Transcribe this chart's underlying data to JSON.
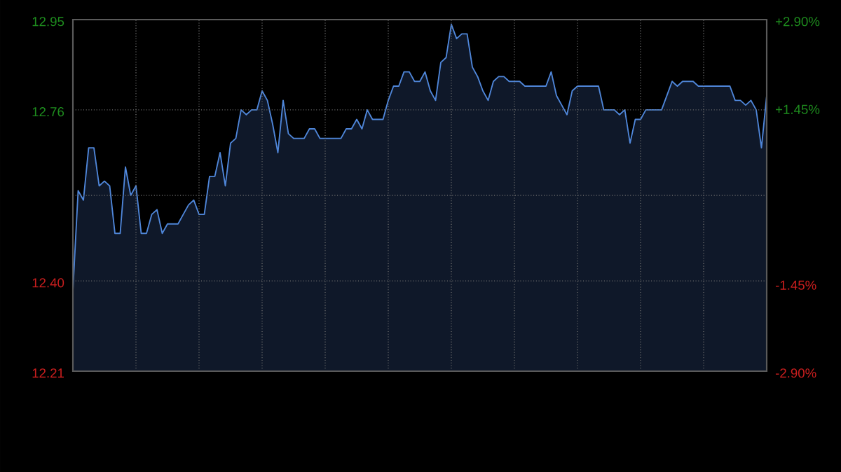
{
  "chart_data": {
    "type": "area",
    "categories": [
      null,
      null,
      null,
      null,
      null,
      null,
      null,
      null,
      null,
      null,
      null,
      null,
      null,
      null,
      null,
      null,
      null,
      null,
      null,
      null,
      null,
      null,
      null,
      null,
      null,
      null,
      null,
      null,
      null,
      null,
      null,
      null,
      null,
      null,
      null,
      null,
      null,
      null,
      null,
      null,
      null,
      null,
      null,
      null,
      null,
      null,
      null,
      null,
      null,
      null,
      null,
      null,
      null,
      null,
      null,
      null,
      null,
      null,
      null,
      null,
      null,
      null,
      null,
      null,
      null,
      null,
      null,
      null,
      null,
      null,
      null,
      null,
      null,
      null,
      null,
      null,
      null,
      null,
      null,
      null,
      null,
      null,
      null,
      null,
      null,
      null,
      null,
      null,
      null,
      null,
      null,
      null,
      null,
      null,
      null,
      null,
      null,
      null,
      null,
      null,
      null,
      null,
      null,
      null,
      null,
      null,
      null,
      null,
      null,
      null,
      null,
      null,
      null,
      null,
      null,
      null,
      null,
      null,
      null,
      null,
      null,
      null,
      null,
      null,
      null,
      null,
      null,
      null,
      null,
      null,
      null,
      null,
      null
    ],
    "series": [
      {
        "color": "#4f86d9",
        "values": [
          12.38,
          12.59,
          12.57,
          12.68,
          12.68,
          12.6,
          12.61,
          12.6,
          12.5,
          12.5,
          12.64,
          12.58,
          12.6,
          12.5,
          12.5,
          12.54,
          12.55,
          12.5,
          12.52,
          12.52,
          12.52,
          12.54,
          12.56,
          12.57,
          12.54,
          12.54,
          12.62,
          12.62,
          12.67,
          12.6,
          12.69,
          12.7,
          12.76,
          12.75,
          12.76,
          12.76,
          12.8,
          12.78,
          12.73,
          12.67,
          12.78,
          12.71,
          12.7,
          12.7,
          12.7,
          12.72,
          12.72,
          12.7,
          12.7,
          12.7,
          12.7,
          12.7,
          12.72,
          12.72,
          12.74,
          12.72,
          12.76,
          12.74,
          12.74,
          12.74,
          12.78,
          12.81,
          12.81,
          12.84,
          12.84,
          12.82,
          12.82,
          12.84,
          12.8,
          12.78,
          12.86,
          12.87,
          12.94,
          12.91,
          12.92,
          12.92,
          12.85,
          12.83,
          12.8,
          12.78,
          12.82,
          12.83,
          12.83,
          12.82,
          12.82,
          12.82,
          12.81,
          12.81,
          12.81,
          12.81,
          12.81,
          12.84,
          12.79,
          12.77,
          12.75,
          12.8,
          12.81,
          12.81,
          12.81,
          12.81,
          12.81,
          12.76,
          12.76,
          12.76,
          12.75,
          12.76,
          12.69,
          12.74,
          12.74,
          12.76,
          12.76,
          12.76,
          12.76,
          12.79,
          12.82,
          12.81,
          12.82,
          12.82,
          12.82,
          12.81,
          12.81,
          12.81,
          12.81,
          12.81,
          12.81,
          12.81,
          12.78,
          12.78,
          12.77,
          12.78,
          12.76,
          12.68,
          12.79
        ]
      }
    ],
    "ylim": [
      12.21,
      12.95
    ],
    "yticks": [
      12.21,
      {
        "value": 12.4,
        "label": "12.40"
      },
      {
        "value": 12.58,
        "label": null
      },
      12.76,
      12.95
    ],
    "y2lim": [
      -2.9,
      2.9
    ],
    "y2ticks": [
      {
        "value": -2.9,
        "label": "-2.90%"
      },
      {
        "value": -1.45,
        "label": "-1.45%"
      },
      {
        "value": 1.45,
        "label": "+1.45%"
      },
      {
        "value": 2.9,
        "label": "+2.90%"
      }
    ],
    "grid": true
  }
}
